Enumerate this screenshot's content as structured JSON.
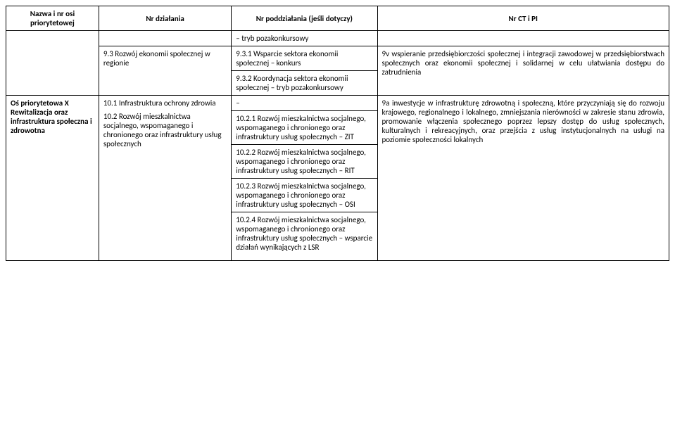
{
  "headers": {
    "col1": "Nazwa i nr osi priorytetowej",
    "col2": "Nr działania",
    "col3": "Nr poddziałania (jeśli dotyczy)",
    "col4": "Nr CT i PI"
  },
  "row_cont": {
    "c3": "– tryb pozakonkursowy"
  },
  "row_93": {
    "c2": "9.3 Rozwój ekonomii społecznej w regionie",
    "c3a": "9.3.1 Wsparcie sektora ekonomii społecznej – konkurs",
    "c3b": "9.3.2 Koordynacja sektora ekonomii społecznej – tryb pozakonkursowy",
    "c4": "9v wspieranie przedsiębiorczości społecznej i integracji zawodowej w przedsiębiorstwach społecznych oraz ekonomii społecznej i solidarnej w celu ułatwiania dostępu do zatrudnienia"
  },
  "row_os10": {
    "c1": "Oś priorytetowa X Rewitalizacja oraz infrastruktura społeczna i zdrowotna",
    "c2a": "10.1 Infrastruktura ochrony zdrowia",
    "c2b": "10.2 Rozwój mieszkalnictwa socjalnego, wspomaganego i chronionego oraz infrastruktury usług społecznych",
    "c3_dash": "–",
    "c3_1021": "10.2.1 Rozwój mieszkalnictwa socjalnego, wspomaganego i chronionego oraz infrastruktury usług społecznych – ZIT",
    "c3_1022": "10.2.2 Rozwój mieszkalnictwa socjalnego, wspomaganego i chronionego oraz infrastruktury usług społecznych – RIT",
    "c3_1023": "10.2.3 Rozwój mieszkalnictwa socjalnego, wspomaganego i chronionego oraz infrastruktury usług społecznych – OSI",
    "c3_1024": "10.2.4 Rozwój mieszkalnictwa socjalnego, wspomaganego i chronionego oraz infrastruktury usług społecznych – wsparcie działań wynikających z LSR",
    "c4": "9a inwestycje w infrastrukturę zdrowotną i społeczną, które przyczyniają się do rozwoju krajowego, regionalnego i lokalnego, zmniejszania nierówności w zakresie stanu zdrowia, promowanie włączenia społecznego poprzez lepszy dostęp do usług społecznych, kulturalnych i rekreacyjnych, oraz przejścia z usług instytucjonalnych na usługi na poziomie społeczności lokalnych"
  }
}
